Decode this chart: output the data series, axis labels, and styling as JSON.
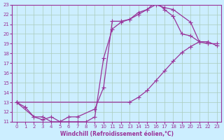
{
  "xlabel": "Windchill (Refroidissement éolien,°C)",
  "bg_color": "#cceeff",
  "line_color": "#993399",
  "grid_color": "#aaccbb",
  "xlim": [
    -0.5,
    23.5
  ],
  "ylim": [
    11,
    23
  ],
  "xticks": [
    0,
    1,
    2,
    3,
    4,
    5,
    6,
    7,
    8,
    9,
    10,
    11,
    12,
    13,
    14,
    15,
    16,
    17,
    18,
    19,
    20,
    21,
    22,
    23
  ],
  "yticks": [
    11,
    12,
    13,
    14,
    15,
    16,
    17,
    18,
    19,
    20,
    21,
    22,
    23
  ],
  "line1_x": [
    0,
    1,
    2,
    3,
    4,
    5,
    6,
    7,
    8,
    9,
    10,
    11,
    12,
    13,
    14,
    15,
    16,
    17,
    18,
    19,
    20,
    21
  ],
  "line1_y": [
    13,
    12.5,
    11.5,
    11.5,
    11.0,
    11.0,
    11.0,
    11.0,
    11.0,
    11.5,
    17.5,
    20.5,
    21.2,
    21.5,
    22.0,
    22.5,
    23.3,
    22.5,
    21.8,
    20.0,
    19.8,
    19.2
  ],
  "line2_x": [
    0,
    2,
    3,
    4,
    5,
    6,
    7,
    9,
    10,
    11,
    12,
    13,
    14,
    15,
    16,
    17,
    18,
    20,
    21,
    22,
    23
  ],
  "line2_y": [
    13,
    11.5,
    11.2,
    11.5,
    11.0,
    11.5,
    11.5,
    12.3,
    14.5,
    21.3,
    21.3,
    21.5,
    22.2,
    22.5,
    23.0,
    22.7,
    22.5,
    21.2,
    19.2,
    19.0,
    19.0
  ],
  "line3_x": [
    0,
    13,
    14,
    15,
    16,
    17,
    18,
    19,
    20,
    21,
    22,
    23
  ],
  "line3_y": [
    13,
    13.0,
    13.5,
    14.2,
    15.2,
    16.2,
    17.2,
    18.1,
    18.7,
    19.2,
    19.2,
    18.8
  ],
  "marker": "+",
  "markersize": 4,
  "linewidth": 0.9
}
